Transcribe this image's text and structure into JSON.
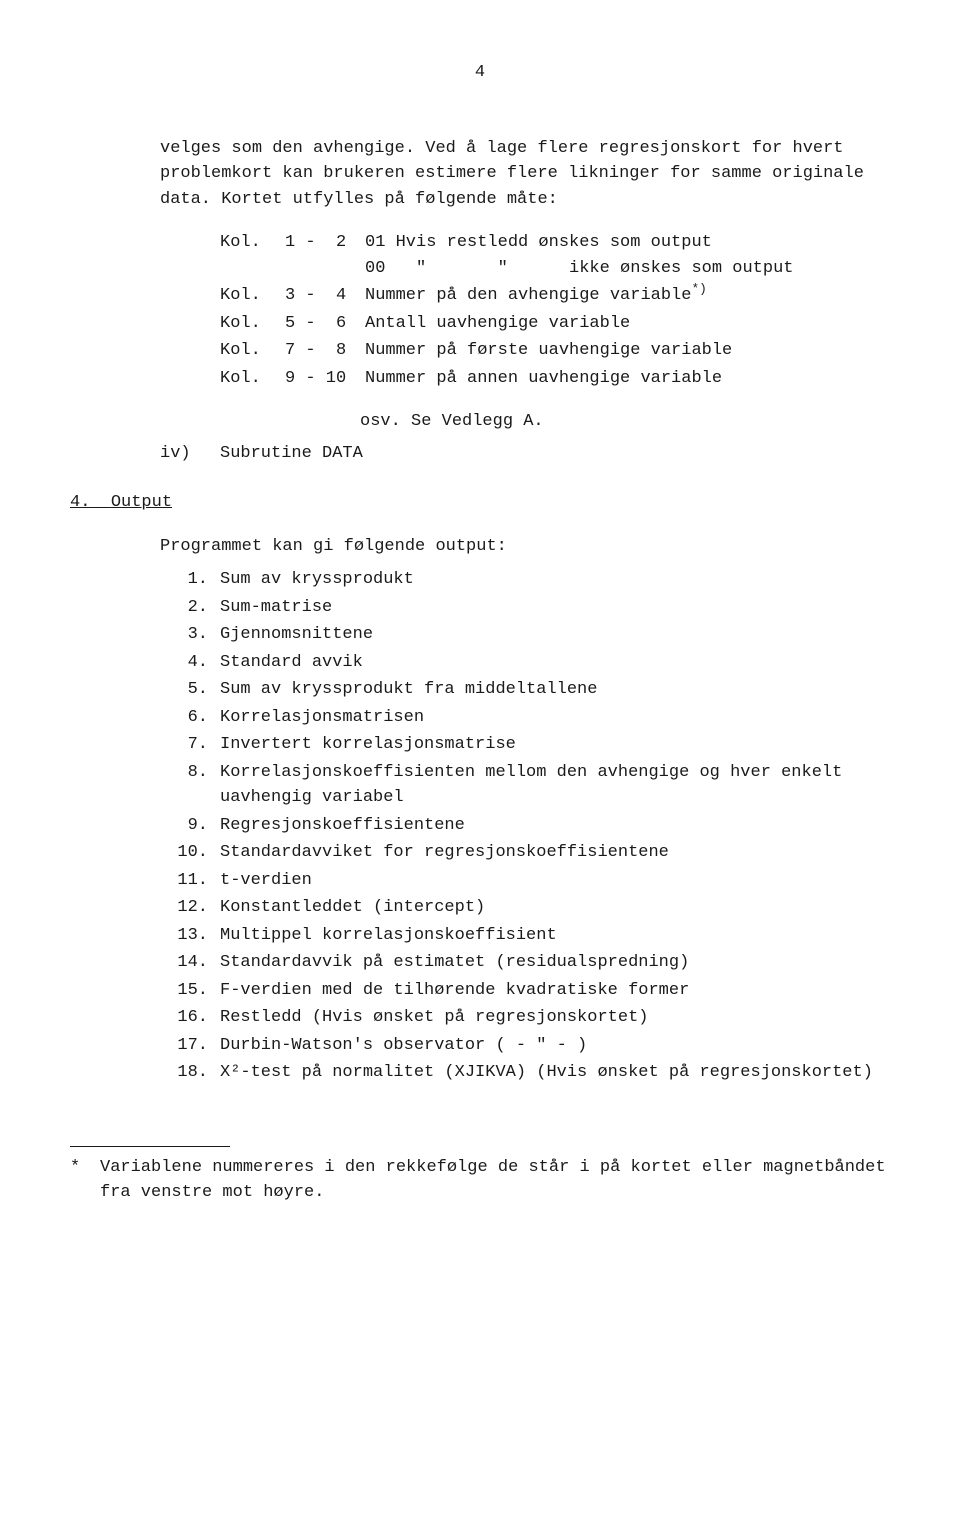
{
  "page_number": "4",
  "intro_paragraph": "velges som den avhengige. Ved å lage flere regresjonskort for hvert problemkort kan brukeren estimere flere likninger for samme originale data. Kortet utfylles på følgende måte:",
  "kol_rows": [
    {
      "label": "Kol.",
      "range": "1 -  2",
      "desc_lines": [
        "01 Hvis restledd ønskes som output",
        "00   \"       \"      ikke ønskes som output"
      ]
    },
    {
      "label": "Kol.",
      "range": "3 -  4",
      "desc_lines": [
        "Nummer på den avhengige variable"
      ],
      "sup": "*)"
    },
    {
      "label": "Kol.",
      "range": "5 -  6",
      "desc_lines": [
        "Antall uavhengige variable"
      ]
    },
    {
      "label": "Kol.",
      "range": "7 -  8",
      "desc_lines": [
        "Nummer på første uavhengige variable"
      ]
    },
    {
      "label": "Kol.",
      "range": "9 - 10",
      "desc_lines": [
        "Nummer på annen uavhengige variable"
      ]
    }
  ],
  "osv_line": "osv.  Se Vedlegg A.",
  "iv_label": "iv)",
  "iv_text": "Subrutine DATA",
  "section4_num": "4.",
  "section4_title": "Output",
  "output_intro": "Programmet kan gi følgende output:",
  "output_items": [
    {
      "n": "1.",
      "t": "Sum av kryssprodukt"
    },
    {
      "n": "2.",
      "t": "Sum-matrise"
    },
    {
      "n": "3.",
      "t": "Gjennomsnittene"
    },
    {
      "n": "4.",
      "t": "Standard avvik"
    },
    {
      "n": "5.",
      "t": "Sum av kryssprodukt fra middeltallene"
    },
    {
      "n": "6.",
      "t": "Korrelasjonsmatrisen"
    },
    {
      "n": "7.",
      "t": "Invertert korrelasjonsmatrise"
    },
    {
      "n": "8.",
      "t": "Korrelasjonskoeffisienten mellom den avhengige og hver enkelt uavhengig variabel"
    },
    {
      "n": "9.",
      "t": "Regresjonskoeffisientene"
    },
    {
      "n": "10.",
      "t": "Standardavviket for regresjonskoeffisientene"
    },
    {
      "n": "11.",
      "t": "t-verdien"
    },
    {
      "n": "12.",
      "t": "Konstantleddet (intercept)"
    },
    {
      "n": "13.",
      "t": "Multippel korrelasjonskoeffisient"
    },
    {
      "n": "14.",
      "t": "Standardavvik på estimatet (residualspredning)"
    },
    {
      "n": "15.",
      "t": "F-verdien med de tilhørende kvadratiske former"
    },
    {
      "n": "16.",
      "t": "Restledd (Hvis ønsket på regresjonskortet)"
    },
    {
      "n": "17.",
      "t": "Durbin-Watson's observator (     - \" -     )"
    },
    {
      "n": "18.",
      "t": "X²-test på normalitet (XJIKVA) (Hvis ønsket på regresjonskortet)"
    }
  ],
  "footnote_mark": "*",
  "footnote_text": "Variablene nummereres i den rekkefølge de står i på kortet eller magnetbåndet fra venstre mot høyre."
}
